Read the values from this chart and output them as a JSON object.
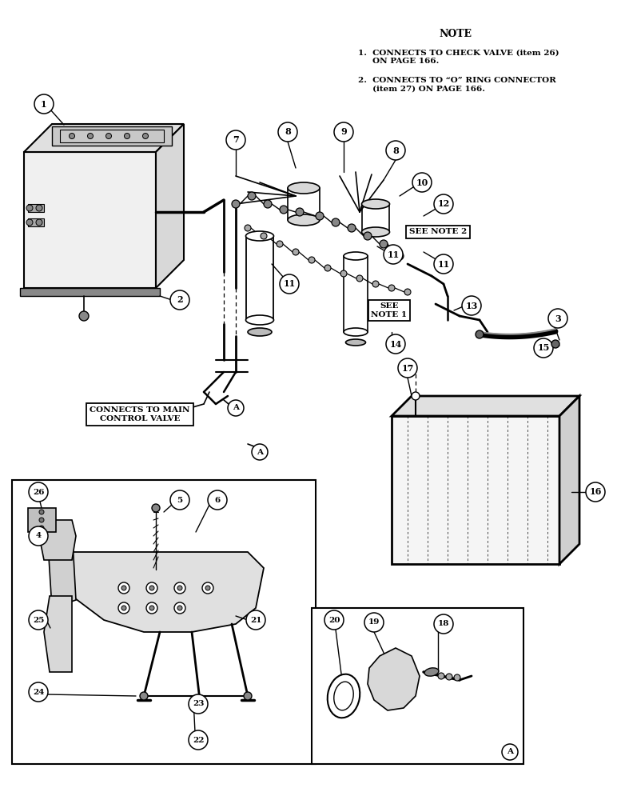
{
  "bg_color": "#ffffff",
  "lc": "#000000",
  "note_title": "NOTE",
  "note1": "1.  CONNECTS TO CHECK VALVE (item 26)\n     ON PAGE 166.",
  "note2": "2.  CONNECTS TO “O” RING CONNECTOR\n     (item 27) ON PAGE 166.",
  "connects_label": "CONNECTS TO MAIN\nCONTROL VALVE",
  "see_note1": "SEE\nNOTE 1",
  "see_note2": "SEE NOTE 2",
  "figw": 7.72,
  "figh": 10.0,
  "dpi": 100
}
